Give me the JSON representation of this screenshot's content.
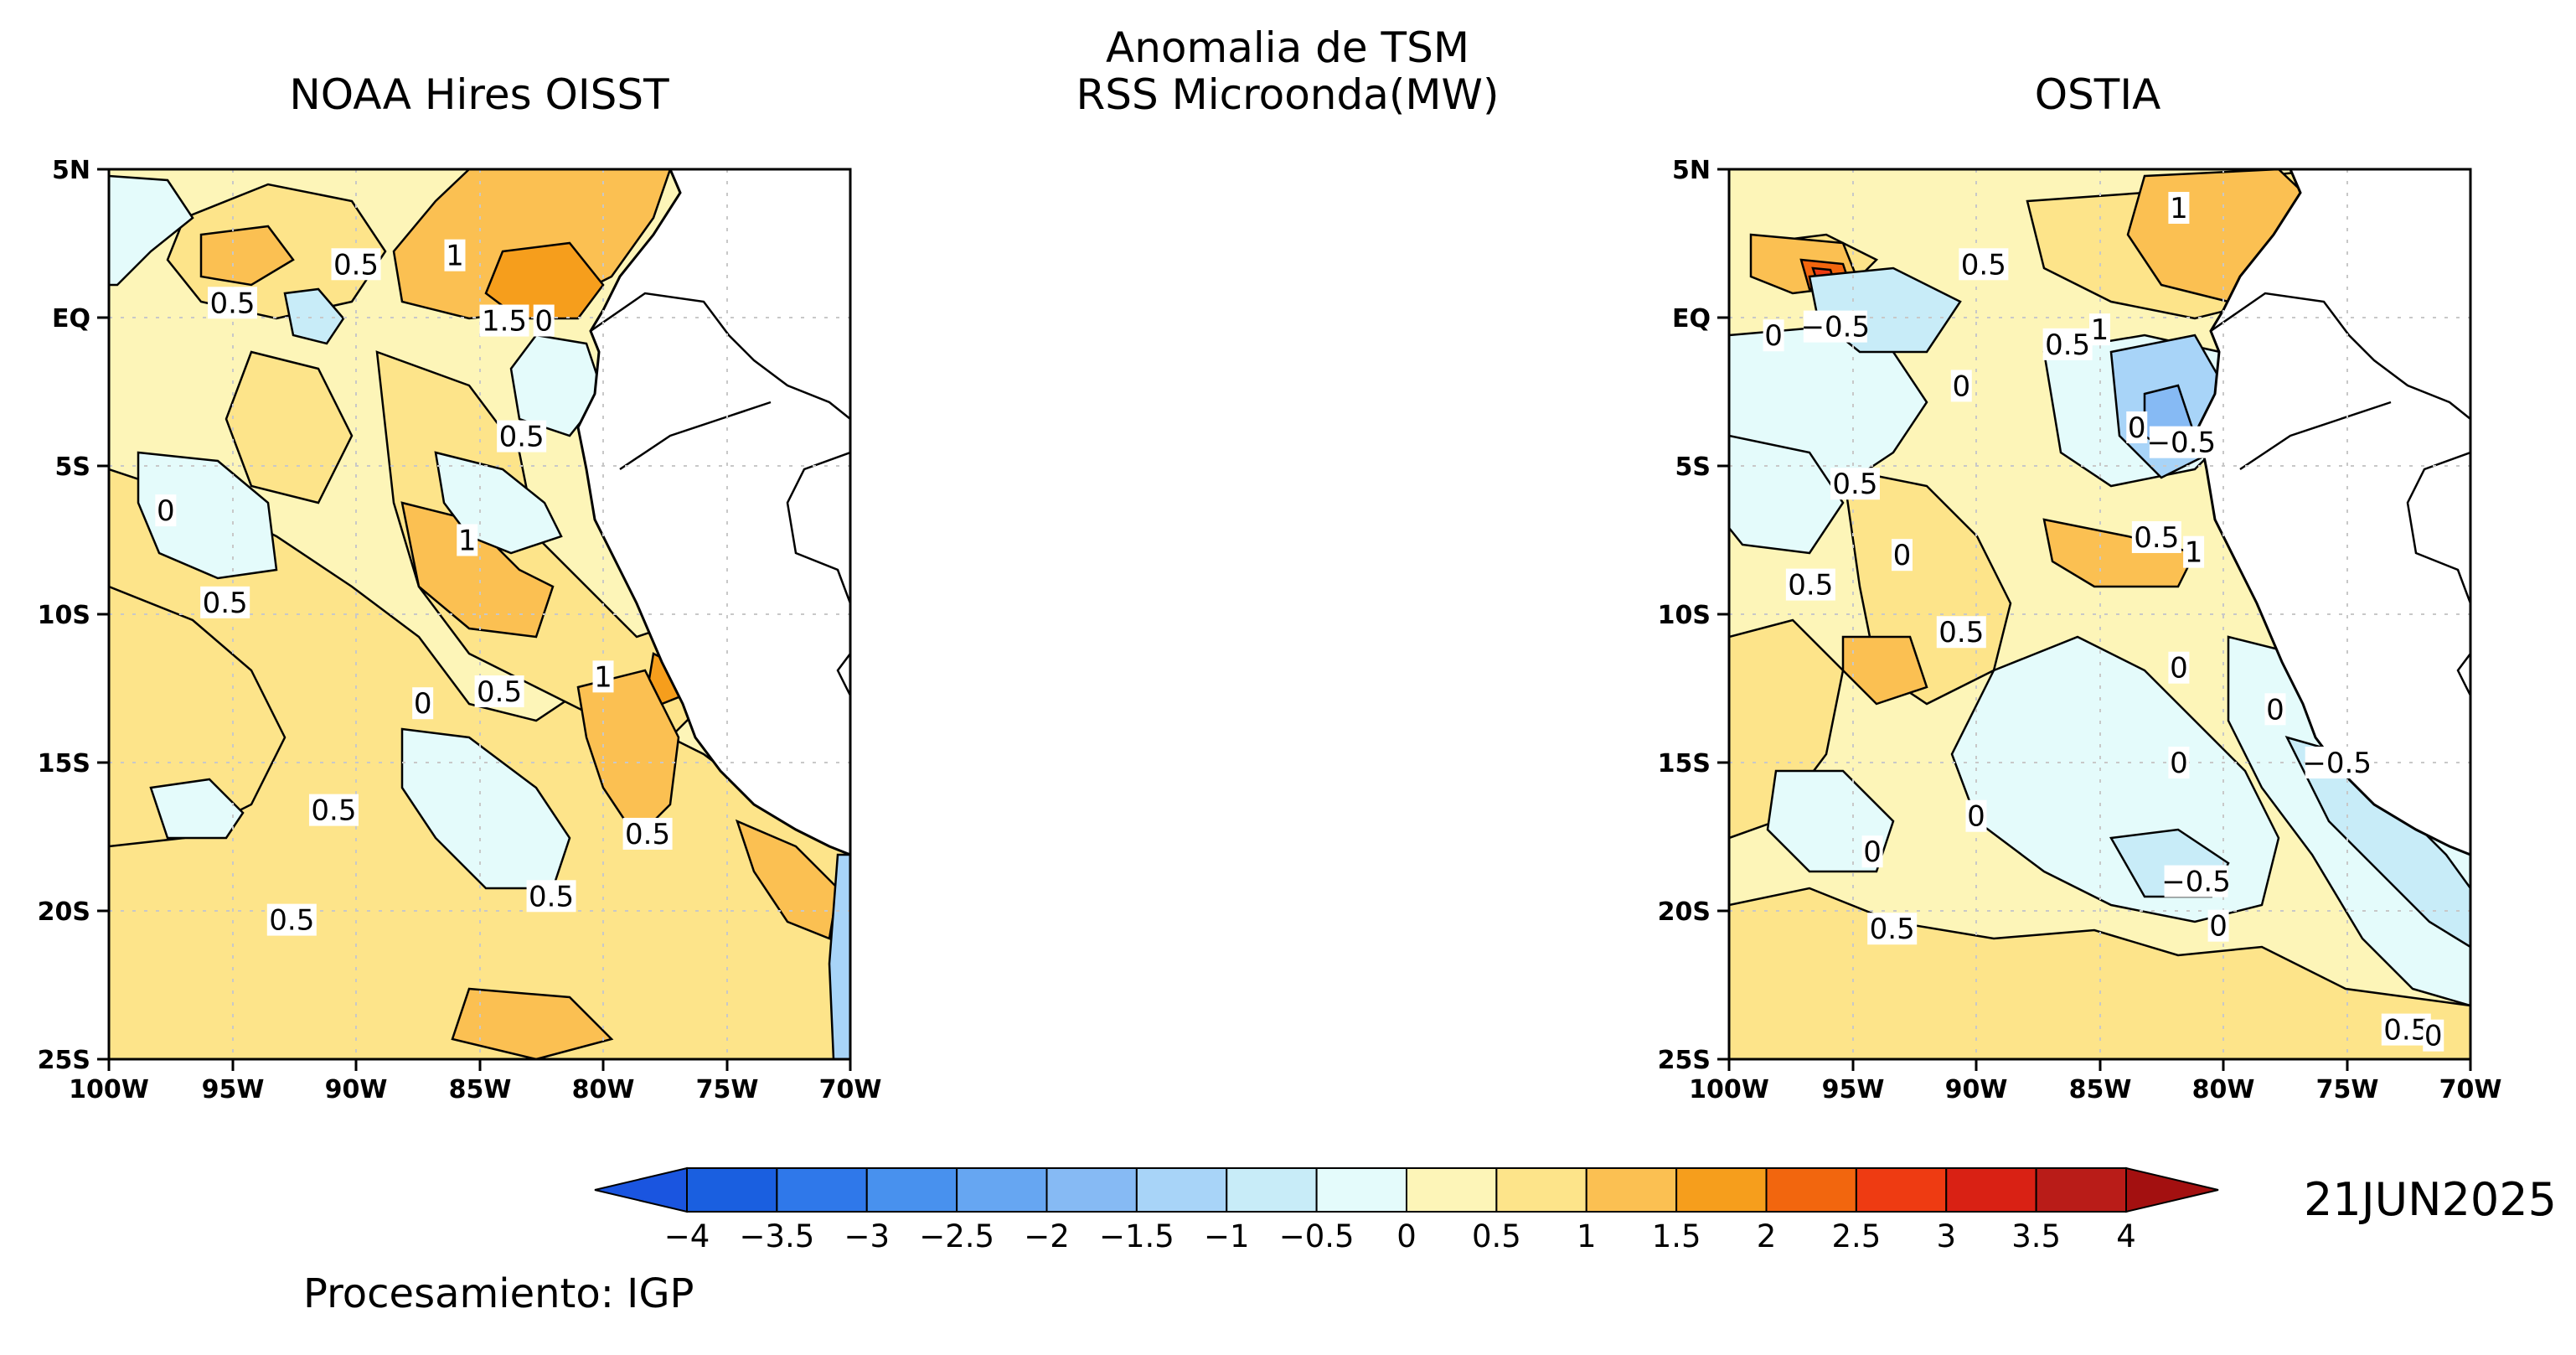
{
  "figure": {
    "title_line1": "Anomalia de TSM",
    "title_line2": "RSS Microonda(MW)",
    "date": "21JUN2025",
    "credit": "Procesamiento: IGP"
  },
  "colors": {
    "ocean_base": "#fdf5b8",
    "land": "#ffffff",
    "coast": "#000000",
    "grid": "#c8c8c8"
  },
  "axes": {
    "lat_labels": [
      "5N",
      "EQ",
      "5S",
      "10S",
      "15S",
      "20S",
      "25S"
    ],
    "lon_labels": [
      "100W",
      "95W",
      "90W",
      "85W",
      "80W",
      "75W",
      "70W"
    ],
    "lat_range": [
      -25,
      5
    ],
    "lon_range": [
      -100,
      -70
    ]
  },
  "panels": [
    {
      "id": "noaa",
      "title": "NOAA Hires OISST",
      "contour_labels": [
        {
          "text": "0.5",
          "lon": -90.0,
          "lat": 1.8
        },
        {
          "text": "1",
          "lon": -86.0,
          "lat": 2.1
        },
        {
          "text": "0.5",
          "lon": -95.0,
          "lat": 0.5
        },
        {
          "text": "1.5",
          "lon": -84.0,
          "lat": -0.1
        },
        {
          "text": "0",
          "lon": -82.4,
          "lat": -0.1
        },
        {
          "text": "0.5",
          "lon": -83.3,
          "lat": -4.0
        },
        {
          "text": "0",
          "lon": -97.7,
          "lat": -6.5
        },
        {
          "text": "1",
          "lon": -85.5,
          "lat": -7.5
        },
        {
          "text": "0.5",
          "lon": -95.3,
          "lat": -9.6
        },
        {
          "text": "0.5",
          "lon": -84.2,
          "lat": -12.6
        },
        {
          "text": "0",
          "lon": -87.3,
          "lat": -13.0
        },
        {
          "text": "1",
          "lon": -80.0,
          "lat": -12.1
        },
        {
          "text": "0.5",
          "lon": -90.9,
          "lat": -16.6
        },
        {
          "text": "0.5",
          "lon": -78.2,
          "lat": -17.4
        },
        {
          "text": "0.5",
          "lon": -82.1,
          "lat": -19.5
        },
        {
          "text": "0.5",
          "lon": -92.6,
          "lat": -20.3
        }
      ]
    },
    {
      "id": "ostia",
      "title": "OSTIA",
      "contour_labels": [
        {
          "text": "1",
          "lon": -81.8,
          "lat": 3.7
        },
        {
          "text": "0.5",
          "lon": -89.7,
          "lat": 1.8
        },
        {
          "text": "0",
          "lon": -98.2,
          "lat": -0.6
        },
        {
          "text": "−0.5",
          "lon": -95.7,
          "lat": -0.3
        },
        {
          "text": "0.5",
          "lon": -86.3,
          "lat": -0.9
        },
        {
          "text": "1",
          "lon": -85.0,
          "lat": -0.4
        },
        {
          "text": "0",
          "lon": -90.6,
          "lat": -2.3
        },
        {
          "text": "0",
          "lon": -83.5,
          "lat": -3.7
        },
        {
          "text": "−0.5",
          "lon": -81.7,
          "lat": -4.2
        },
        {
          "text": "0.5",
          "lon": -94.9,
          "lat": -5.6
        },
        {
          "text": "0",
          "lon": -93.0,
          "lat": -8.0
        },
        {
          "text": "0.5",
          "lon": -82.7,
          "lat": -7.4
        },
        {
          "text": "1",
          "lon": -81.2,
          "lat": -7.9
        },
        {
          "text": "0.5",
          "lon": -96.7,
          "lat": -9.0
        },
        {
          "text": "0.5",
          "lon": -90.6,
          "lat": -10.6
        },
        {
          "text": "0",
          "lon": -81.8,
          "lat": -11.8
        },
        {
          "text": "0",
          "lon": -77.9,
          "lat": -13.2
        },
        {
          "text": "−0.5",
          "lon": -75.4,
          "lat": -15.0
        },
        {
          "text": "0",
          "lon": -81.8,
          "lat": -15.0
        },
        {
          "text": "0",
          "lon": -90.0,
          "lat": -16.8
        },
        {
          "text": "0",
          "lon": -94.2,
          "lat": -18.0
        },
        {
          "text": "−0.5",
          "lon": -81.1,
          "lat": -19.0
        },
        {
          "text": "0",
          "lon": -80.2,
          "lat": -20.5
        },
        {
          "text": "0.5",
          "lon": -93.4,
          "lat": -20.6
        },
        {
          "text": "0.5",
          "lon": -72.6,
          "lat": -24.0
        },
        {
          "text": "0",
          "lon": -71.5,
          "lat": -24.2
        }
      ]
    }
  ],
  "colorbar": {
    "labels": [
      "−4",
      "−3.5",
      "−3",
      "−2.5",
      "−2",
      "−1.5",
      "−1",
      "−0.5",
      "0",
      "0.5",
      "1",
      "1.5",
      "2",
      "2.5",
      "3",
      "3.5",
      "4"
    ],
    "colors": [
      "#1a5fe0",
      "#2f78ea",
      "#4891ee",
      "#66a6f2",
      "#86baf4",
      "#a8d4f8",
      "#c8ecf8",
      "#e4fbfb",
      "#fdf5b8",
      "#fde48a",
      "#fbc052",
      "#f69e1c",
      "#f2660e",
      "#ee3b12",
      "#d92114",
      "#b91c18"
    ],
    "min_color": "#1a55e0",
    "max_color": "#a31010"
  }
}
